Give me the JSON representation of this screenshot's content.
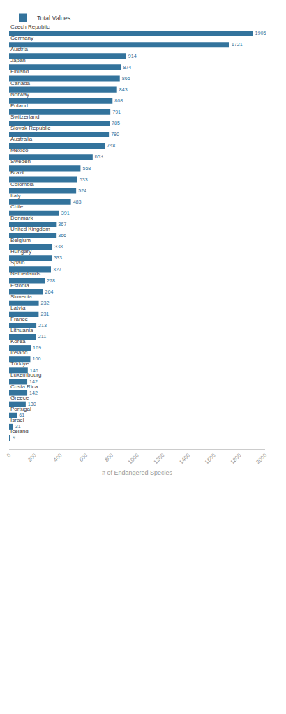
{
  "chart_data": {
    "type": "bar",
    "orientation": "horizontal",
    "x_label": "# of Endangered Species",
    "categories": [
      "Czech Republic",
      "Germany",
      "Austria",
      "Japan",
      "Finland",
      "Canada",
      "Norway",
      "Poland",
      "Switzerland",
      "Slovak Republic",
      "Australia",
      "Mexico",
      "Sweden",
      "Brazil",
      "Colombia",
      "Italy",
      "Chile",
      "Denmark",
      "United Kingdom",
      "Belgium",
      "Hungary",
      "Spain",
      "Netherlands",
      "Estonia",
      "Slovenia",
      "Latvia",
      "France",
      "Lithuania",
      "Korea",
      "Ireland",
      "Türkiye",
      "Luxembourg",
      "Costa Rica",
      "Greece",
      "Portugal",
      "Israel",
      "Iceland"
    ],
    "series": [
      {
        "name": "Total Values",
        "color": "#33739c",
        "values": [
          1905,
          1721,
          914,
          874,
          865,
          843,
          808,
          791,
          785,
          780,
          748,
          653,
          558,
          533,
          524,
          483,
          391,
          367,
          366,
          338,
          333,
          327,
          278,
          264,
          232,
          231,
          213,
          211,
          169,
          166,
          146,
          142,
          142,
          130,
          61,
          31,
          9
        ]
      }
    ],
    "xlim": [
      0,
      2000
    ],
    "xticks": [
      0,
      200,
      400,
      600,
      800,
      1000,
      1200,
      1400,
      1600,
      1800,
      2000
    ],
    "grid": false,
    "legend": "top left",
    "data_labels": true
  }
}
